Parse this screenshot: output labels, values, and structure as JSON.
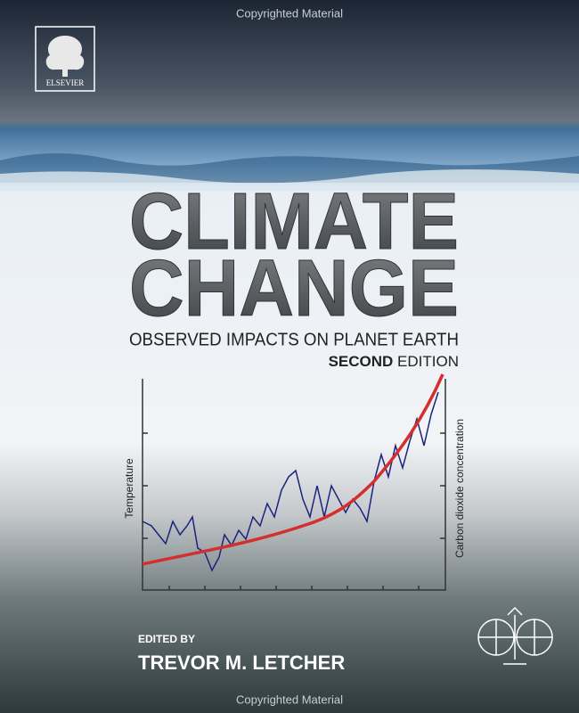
{
  "watermark_top": "Copyrighted Material",
  "publisher": "ELSEVIER",
  "title": {
    "line1": "CLIMATE",
    "line2": "CHANGE"
  },
  "subtitle": "OBSERVED IMPACTS ON PLANET EARTH",
  "edition": {
    "ordinal": "SECOND",
    "word": "EDITION"
  },
  "graph": {
    "left_label": "Temperature",
    "right_label": "Carbon dioxide concentration"
  },
  "editor": {
    "label": "EDITED BY",
    "name": "TREVOR M. LETCHER"
  },
  "watermark_bottom": "Copyrighted Material"
}
